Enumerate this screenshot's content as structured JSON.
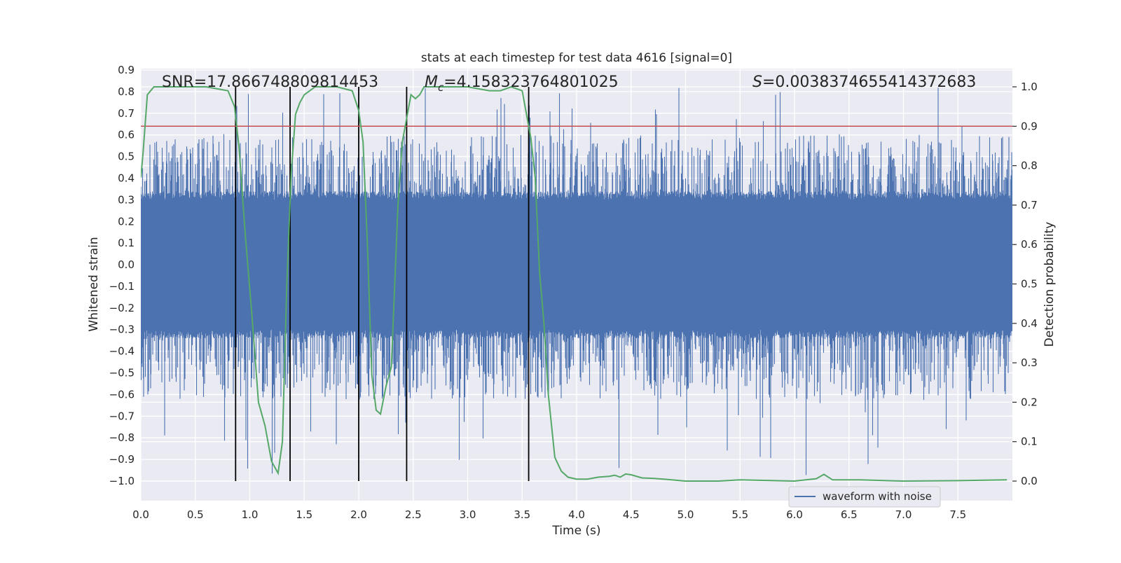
{
  "chart_data": {
    "type": "line",
    "title": "stats at each timestep for test data 4616 [signal=0]",
    "xlabel": "Time (s)",
    "ylabel": "Whitened strain",
    "y2label": "Detection probability",
    "xlim": [
      0.0,
      8.0
    ],
    "ylim": [
      -1.0,
      0.9
    ],
    "y2lim": [
      0.0,
      1.0
    ],
    "xticks": [
      "0.0",
      "0.5",
      "1.0",
      "1.5",
      "2.0",
      "2.5",
      "3.0",
      "3.5",
      "4.0",
      "4.5",
      "5.0",
      "5.5",
      "6.0",
      "6.5",
      "7.0",
      "7.5"
    ],
    "yticks": [
      "0.9",
      "0.8",
      "0.7",
      "0.6",
      "0.5",
      "0.4",
      "0.3",
      "0.2",
      "0.1",
      "0.0",
      "−0.1",
      "−0.2",
      "−0.3",
      "−0.4",
      "−0.5",
      "−0.6",
      "−0.7",
      "−0.8",
      "−0.9",
      "−1.0"
    ],
    "y2ticks": [
      "1.0",
      "0.9",
      "0.8",
      "0.7",
      "0.6",
      "0.5",
      "0.4",
      "0.3",
      "0.2",
      "0.1",
      "0.0"
    ],
    "grid": true,
    "annotations": {
      "snr": "SNR=17.866748809814453",
      "mc_symbol": "M",
      "mc_sub": "c",
      "mc_value": "=4.158323764801025",
      "s_symbol": "S",
      "s_value": "=0.0038374655414372683"
    },
    "threshold": {
      "y2": 0.9,
      "color": "#c44e52"
    },
    "vertical_lines": [
      0.87,
      1.37,
      2.0,
      2.44,
      3.56
    ],
    "series": [
      {
        "name": "waveform with noise",
        "axis": "left",
        "color": "#4c72b0",
        "style": "noise",
        "envelope": {
          "core": 0.3,
          "typical_peak": 0.55,
          "max_peak": 0.82,
          "min_peak": -1.0
        }
      },
      {
        "axis": "right",
        "color": "#55a868",
        "x": [
          0.0,
          0.02,
          0.06,
          0.12,
          0.2,
          0.4,
          0.6,
          0.8,
          0.86,
          0.9,
          0.96,
          1.02,
          1.08,
          1.14,
          1.2,
          1.26,
          1.3,
          1.34,
          1.38,
          1.42,
          1.46,
          1.5,
          1.6,
          1.8,
          1.94,
          2.0,
          2.04,
          2.08,
          2.12,
          2.16,
          2.2,
          2.25,
          2.3,
          2.36,
          2.4,
          2.44,
          2.48,
          2.52,
          2.56,
          2.6,
          2.64,
          2.7,
          2.8,
          3.0,
          3.2,
          3.3,
          3.4,
          3.5,
          3.54,
          3.58,
          3.62,
          3.66,
          3.7,
          3.74,
          3.8,
          3.86,
          3.92,
          4.0,
          4.1,
          4.2,
          4.3,
          4.35,
          4.4,
          4.45,
          4.5,
          4.6,
          4.7,
          4.8,
          5.0,
          5.3,
          5.5,
          6.0,
          6.2,
          6.27,
          6.35,
          6.6,
          7.0,
          7.5,
          7.95
        ],
        "y": [
          0.77,
          0.83,
          0.98,
          1.0,
          1.0,
          1.0,
          1.0,
          0.99,
          0.95,
          0.85,
          0.62,
          0.42,
          0.2,
          0.14,
          0.05,
          0.02,
          0.1,
          0.5,
          0.78,
          0.93,
          0.96,
          0.98,
          1.0,
          1.0,
          0.99,
          0.94,
          0.86,
          0.6,
          0.27,
          0.18,
          0.17,
          0.24,
          0.29,
          0.7,
          0.86,
          0.92,
          0.98,
          0.97,
          0.98,
          1.0,
          1.0,
          1.0,
          1.0,
          1.0,
          0.99,
          0.99,
          1.0,
          0.99,
          0.93,
          0.87,
          0.77,
          0.53,
          0.4,
          0.22,
          0.06,
          0.025,
          0.01,
          0.005,
          0.005,
          0.01,
          0.012,
          0.015,
          0.01,
          0.018,
          0.016,
          0.008,
          0.007,
          0.005,
          0.0,
          0.0,
          0.003,
          0.0,
          0.006,
          0.017,
          0.003,
          0.003,
          0.0,
          0.001,
          0.003
        ]
      }
    ]
  }
}
